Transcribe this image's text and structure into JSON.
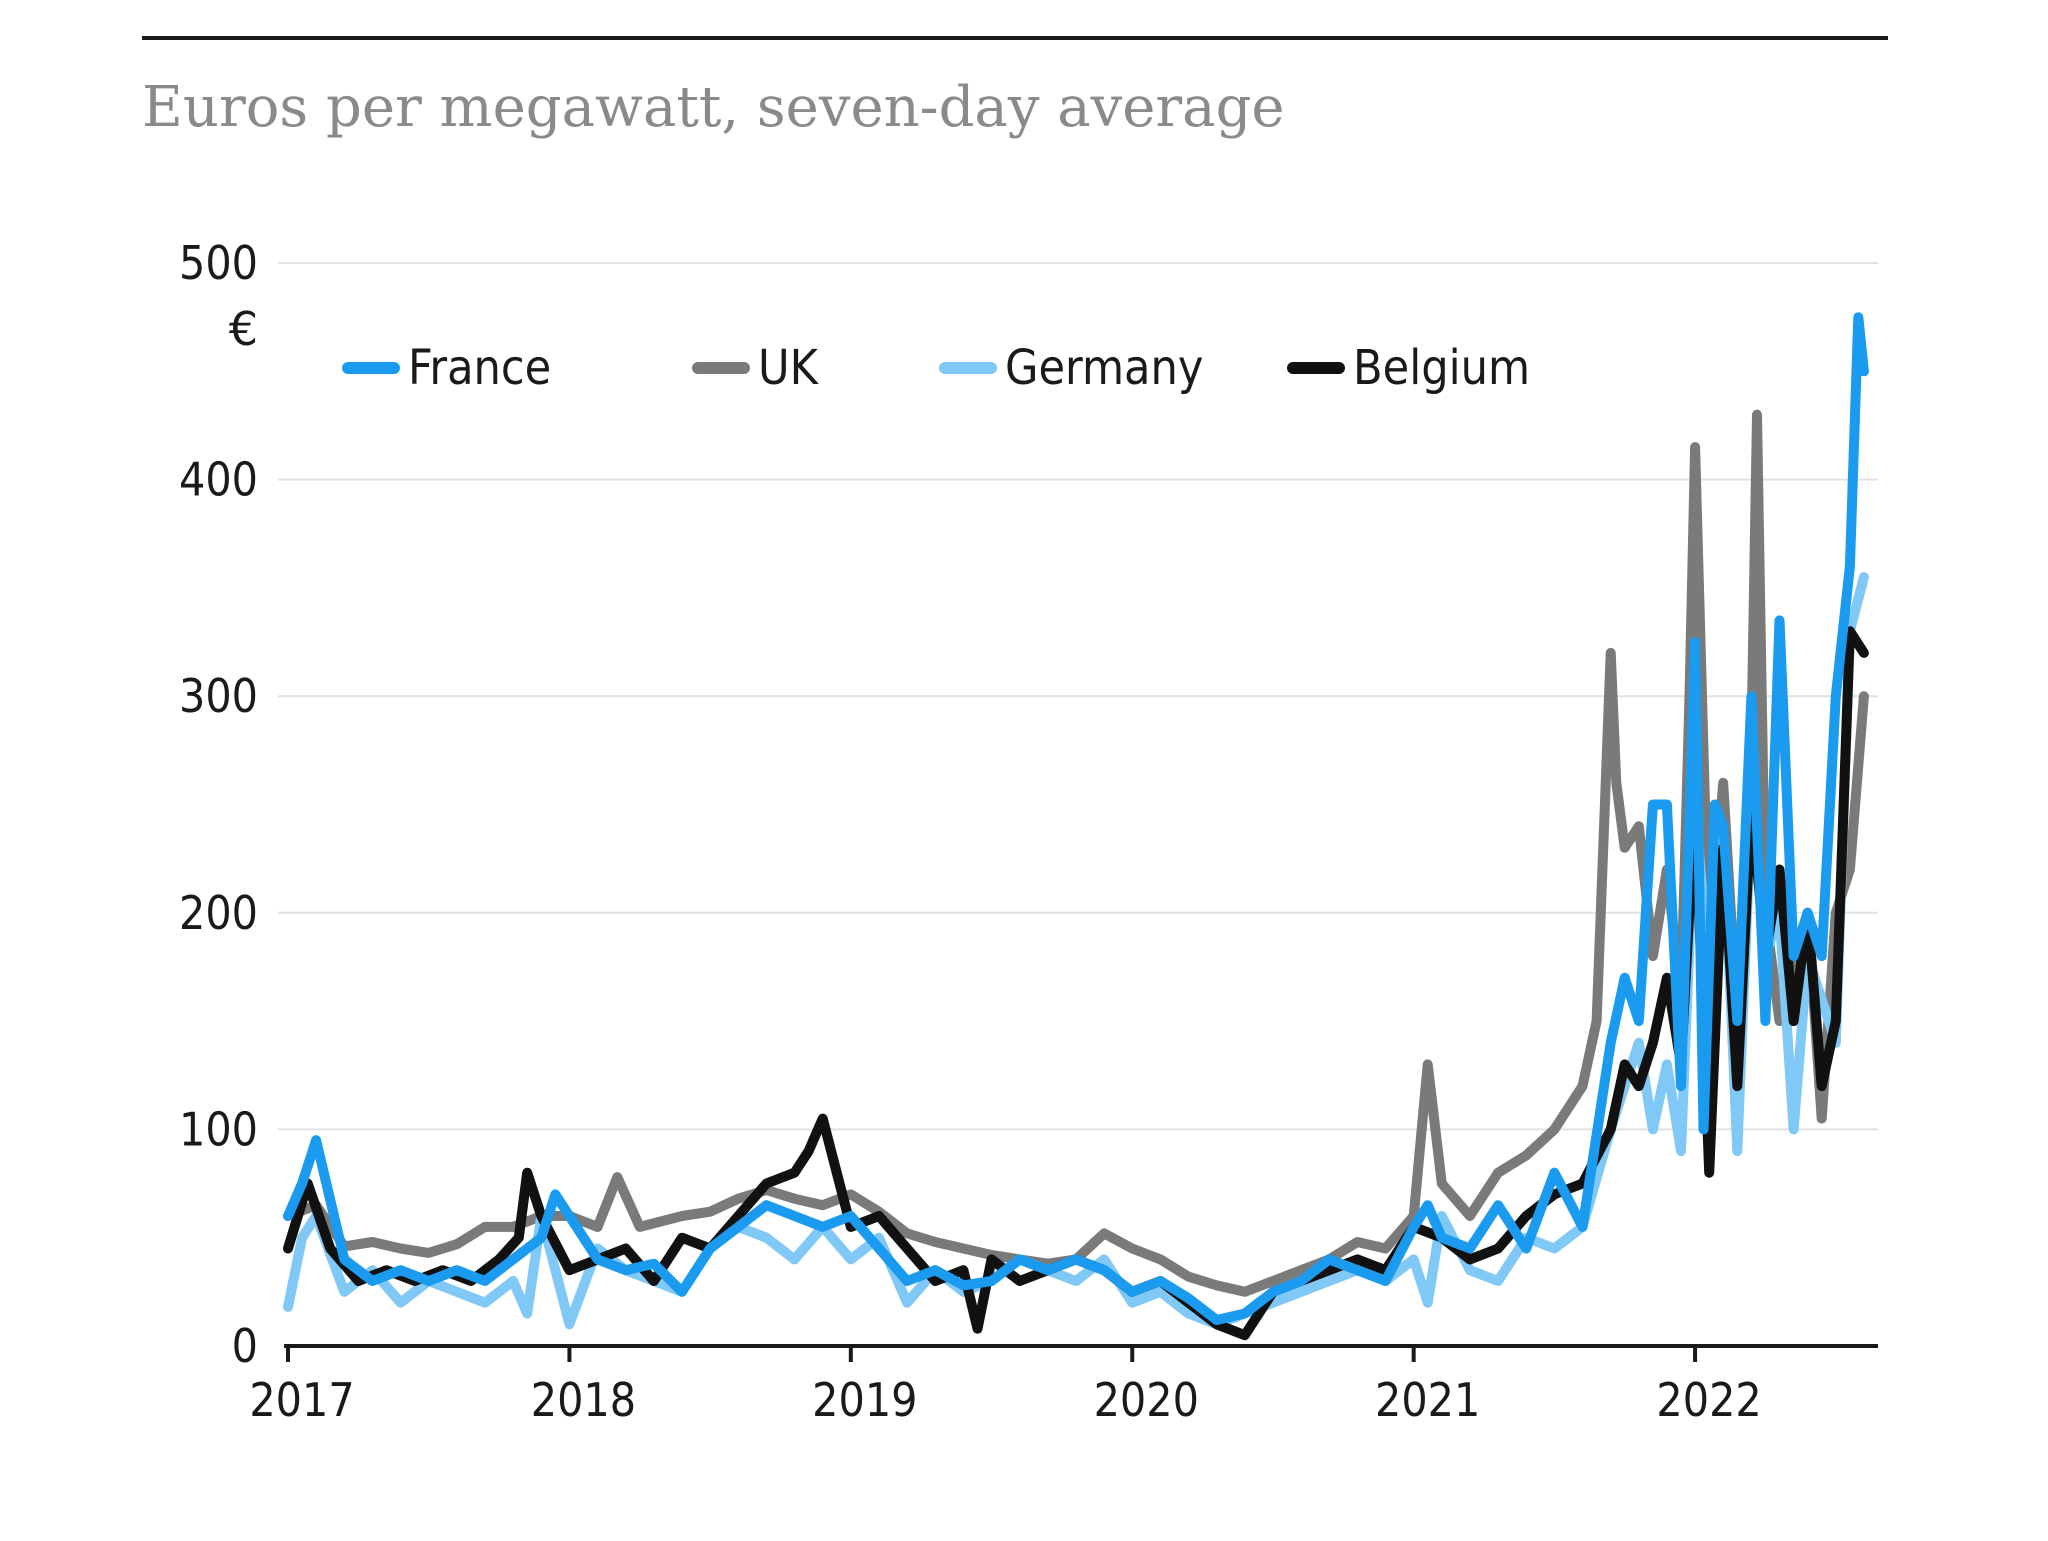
{
  "chart_data": {
    "type": "line",
    "title": "",
    "subtitle": "Euros per megawatt, seven-day average",
    "xlabel": "",
    "ylabel": "",
    "y_unit": "€",
    "xlim": [
      2017.0,
      2022.65
    ],
    "ylim": [
      0,
      500
    ],
    "yticks": [
      "0",
      "100",
      "200",
      "300",
      "400",
      "500"
    ],
    "xticks": [
      "2017",
      "2018",
      "2019",
      "2020",
      "2021",
      "2022"
    ],
    "grid": true,
    "legend_position": "top",
    "series": [
      {
        "name": "UK",
        "color": "#7a7a7a",
        "x": [
          2017.0,
          2017.1,
          2017.2,
          2017.3,
          2017.4,
          2017.5,
          2017.6,
          2017.7,
          2017.8,
          2017.9,
          2018.0,
          2018.1,
          2018.17,
          2018.25,
          2018.4,
          2018.5,
          2018.6,
          2018.7,
          2018.8,
          2018.9,
          2019.0,
          2019.1,
          2019.2,
          2019.3,
          2019.4,
          2019.5,
          2019.6,
          2019.7,
          2019.8,
          2019.9,
          2020.0,
          2020.1,
          2020.2,
          2020.3,
          2020.4,
          2020.5,
          2020.6,
          2020.7,
          2020.8,
          2020.9,
          2021.0,
          2021.05,
          2021.1,
          2021.2,
          2021.3,
          2021.4,
          2021.5,
          2021.6,
          2021.65,
          2021.7,
          2021.72,
          2021.75,
          2021.8,
          2021.85,
          2021.9,
          2021.95,
          2021.98,
          2022.0,
          2022.05,
          2022.1,
          2022.15,
          2022.2,
          2022.22,
          2022.25,
          2022.3,
          2022.35,
          2022.4,
          2022.45,
          2022.5,
          2022.55,
          2022.6
        ],
        "y": [
          60,
          65,
          46,
          48,
          45,
          43,
          47,
          55,
          55,
          60,
          60,
          55,
          78,
          55,
          60,
          62,
          68,
          72,
          68,
          65,
          70,
          62,
          52,
          48,
          45,
          42,
          40,
          38,
          40,
          52,
          45,
          40,
          32,
          28,
          25,
          30,
          35,
          40,
          48,
          45,
          60,
          130,
          75,
          60,
          80,
          88,
          100,
          120,
          150,
          320,
          260,
          230,
          240,
          180,
          220,
          160,
          300,
          415,
          180,
          260,
          150,
          280,
          430,
          200,
          150,
          170,
          200,
          105,
          200,
          220,
          300
        ]
      },
      {
        "name": "Germany",
        "color": "#80c8f5",
        "x": [
          2017.0,
          2017.05,
          2017.1,
          2017.2,
          2017.3,
          2017.4,
          2017.5,
          2017.6,
          2017.7,
          2017.8,
          2017.85,
          2017.9,
          2018.0,
          2018.1,
          2018.2,
          2018.3,
          2018.4,
          2018.5,
          2018.6,
          2018.7,
          2018.8,
          2018.9,
          2019.0,
          2019.1,
          2019.2,
          2019.3,
          2019.4,
          2019.5,
          2019.6,
          2019.7,
          2019.8,
          2019.9,
          2020.0,
          2020.1,
          2020.2,
          2020.3,
          2020.4,
          2020.5,
          2020.6,
          2020.7,
          2020.8,
          2020.9,
          2021.0,
          2021.05,
          2021.1,
          2021.2,
          2021.3,
          2021.4,
          2021.5,
          2021.6,
          2021.7,
          2021.8,
          2021.85,
          2021.9,
          2021.95,
          2022.0,
          2022.05,
          2022.1,
          2022.15,
          2022.2,
          2022.25,
          2022.3,
          2022.35,
          2022.4,
          2022.45,
          2022.5,
          2022.55,
          2022.6
        ],
        "y": [
          18,
          50,
          60,
          25,
          35,
          20,
          30,
          25,
          20,
          30,
          15,
          60,
          10,
          45,
          35,
          30,
          25,
          45,
          55,
          50,
          40,
          55,
          40,
          50,
          20,
          35,
          25,
          30,
          40,
          35,
          30,
          40,
          20,
          25,
          15,
          10,
          15,
          20,
          25,
          30,
          35,
          30,
          40,
          20,
          60,
          35,
          30,
          50,
          45,
          55,
          100,
          140,
          100,
          130,
          90,
          250,
          170,
          240,
          90,
          250,
          180,
          200,
          100,
          180,
          160,
          140,
          330,
          355
        ]
      },
      {
        "name": "Belgium",
        "color": "#111111",
        "x": [
          2017.0,
          2017.07,
          2017.15,
          2017.25,
          2017.35,
          2017.45,
          2017.55,
          2017.65,
          2017.75,
          2017.82,
          2017.85,
          2017.9,
          2018.0,
          2018.1,
          2018.2,
          2018.3,
          2018.4,
          2018.5,
          2018.6,
          2018.7,
          2018.8,
          2018.85,
          2018.9,
          2019.0,
          2019.1,
          2019.2,
          2019.3,
          2019.4,
          2019.45,
          2019.5,
          2019.6,
          2019.7,
          2019.8,
          2019.9,
          2020.0,
          2020.1,
          2020.2,
          2020.3,
          2020.4,
          2020.5,
          2020.6,
          2020.7,
          2020.8,
          2020.9,
          2021.0,
          2021.1,
          2021.2,
          2021.3,
          2021.4,
          2021.5,
          2021.6,
          2021.7,
          2021.75,
          2021.8,
          2021.85,
          2021.9,
          2021.95,
          2022.0,
          2022.05,
          2022.1,
          2022.15,
          2022.2,
          2022.25,
          2022.3,
          2022.35,
          2022.4,
          2022.45,
          2022.5,
          2022.55,
          2022.6
        ],
        "y": [
          45,
          75,
          45,
          30,
          35,
          30,
          35,
          30,
          40,
          50,
          80,
          60,
          35,
          40,
          45,
          30,
          50,
          45,
          60,
          75,
          80,
          90,
          105,
          55,
          60,
          45,
          30,
          35,
          8,
          40,
          30,
          35,
          40,
          35,
          25,
          30,
          20,
          10,
          5,
          25,
          30,
          35,
          40,
          35,
          55,
          50,
          40,
          45,
          60,
          70,
          75,
          100,
          130,
          120,
          140,
          170,
          130,
          250,
          80,
          230,
          120,
          250,
          180,
          220,
          150,
          200,
          120,
          150,
          330,
          320
        ]
      },
      {
        "name": "France",
        "color": "#1a9bf0",
        "x": [
          2017.0,
          2017.05,
          2017.1,
          2017.2,
          2017.3,
          2017.4,
          2017.5,
          2017.6,
          2017.7,
          2017.8,
          2017.9,
          2017.95,
          2018.0,
          2018.1,
          2018.2,
          2018.3,
          2018.4,
          2018.5,
          2018.6,
          2018.7,
          2018.8,
          2018.9,
          2019.0,
          2019.1,
          2019.2,
          2019.3,
          2019.4,
          2019.5,
          2019.6,
          2019.7,
          2019.8,
          2019.9,
          2020.0,
          2020.1,
          2020.2,
          2020.3,
          2020.4,
          2020.5,
          2020.6,
          2020.7,
          2020.8,
          2020.9,
          2021.0,
          2021.05,
          2021.1,
          2021.2,
          2021.3,
          2021.4,
          2021.5,
          2021.6,
          2021.7,
          2021.75,
          2021.8,
          2021.85,
          2021.9,
          2021.95,
          2022.0,
          2022.03,
          2022.07,
          2022.1,
          2022.15,
          2022.2,
          2022.25,
          2022.3,
          2022.35,
          2022.4,
          2022.45,
          2022.5,
          2022.55,
          2022.58,
          2022.6
        ],
        "y": [
          60,
          75,
          95,
          40,
          30,
          35,
          30,
          35,
          30,
          40,
          50,
          70,
          60,
          40,
          35,
          38,
          25,
          45,
          55,
          65,
          60,
          55,
          60,
          45,
          30,
          35,
          28,
          30,
          40,
          35,
          40,
          35,
          25,
          30,
          22,
          12,
          15,
          25,
          30,
          40,
          35,
          30,
          55,
          65,
          50,
          45,
          65,
          45,
          80,
          55,
          140,
          170,
          150,
          250,
          250,
          120,
          325,
          100,
          250,
          240,
          150,
          300,
          150,
          335,
          180,
          200,
          180,
          300,
          360,
          475,
          450
        ]
      }
    ]
  }
}
